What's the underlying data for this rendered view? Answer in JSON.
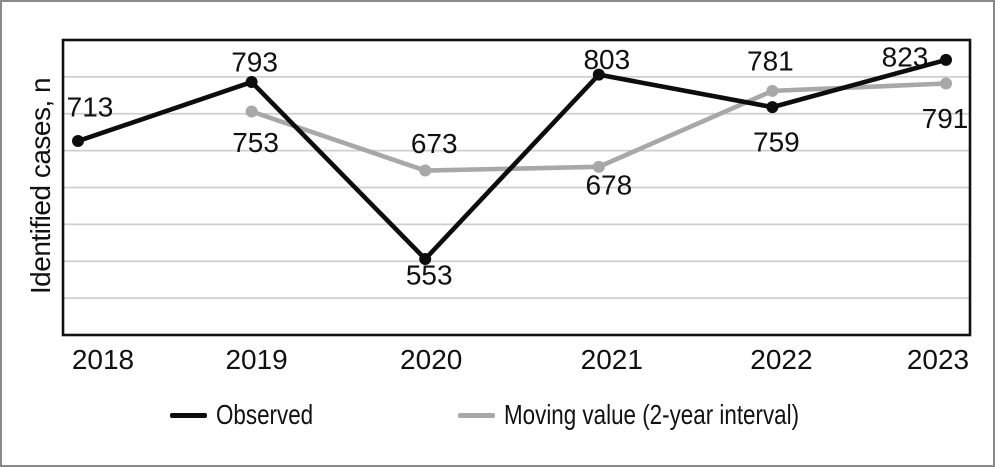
{
  "chart_data": {
    "type": "line",
    "title": "",
    "ylabel": "Identified cases, n",
    "xlabel": "",
    "categories": [
      "2018",
      "2019",
      "2020",
      "2021",
      "2022",
      "2023"
    ],
    "series": [
      {
        "name": "Observed",
        "color": "#0d0d0d",
        "values": [
          713,
          793,
          553,
          803,
          759,
          823
        ],
        "label_offsets": [
          [
            12,
            -34
          ],
          [
            3,
            -20
          ],
          [
            4,
            16
          ],
          [
            8,
            -15
          ],
          [
            4,
            35
          ],
          [
            -41,
            -3
          ]
        ]
      },
      {
        "name": "Moving value (2-year interval)",
        "color": "#a8a8a8",
        "values": [
          null,
          753,
          673,
          678,
          781,
          791
        ],
        "label_offsets": [
          null,
          [
            4,
            31
          ],
          [
            9,
            -27
          ],
          [
            10,
            18
          ],
          [
            -2,
            -30
          ],
          [
            -1,
            35
          ]
        ]
      }
    ],
    "ylim": [
      450,
      850
    ],
    "grid_step": 50,
    "grid": true,
    "gridline_color": "#cfcfcf",
    "axis_color": "#111111",
    "text_color": "#111111",
    "legend_position": "bottom"
  }
}
